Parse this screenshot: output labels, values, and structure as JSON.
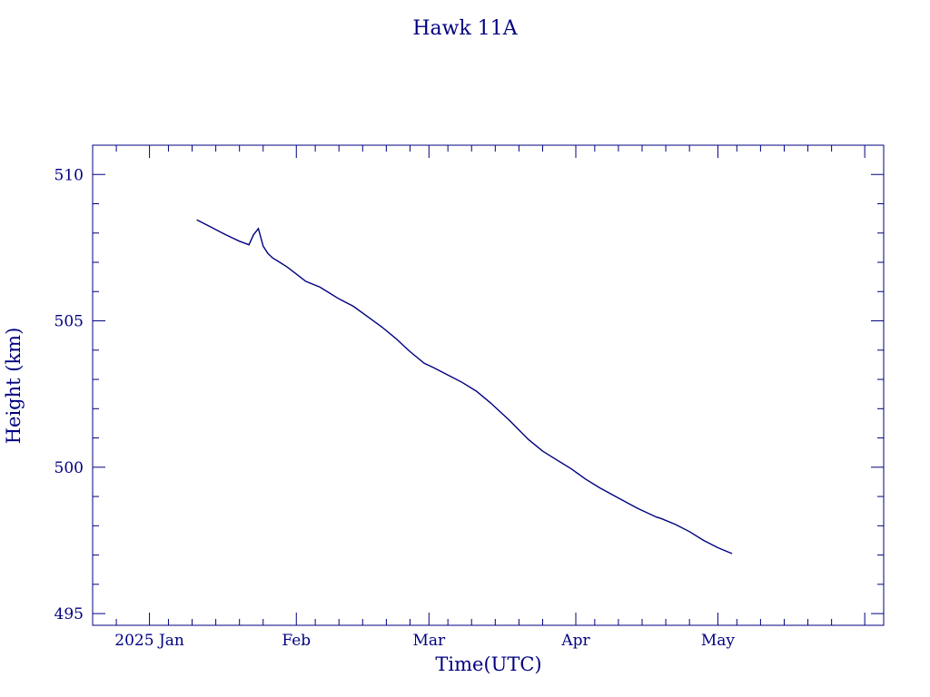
{
  "colors": {
    "ink": "#000080",
    "background": "#ffffff"
  },
  "chart_data": {
    "type": "line",
    "title": "Hawk 11A",
    "xlabel": "Time(UTC)",
    "ylabel": "Height (km)",
    "x_axis_kind": "date",
    "xlim": [
      "2024-12-20",
      "2025-06-05"
    ],
    "ylim": [
      494.6,
      511.0
    ],
    "x_ticks": [
      {
        "date": "2025-01-01",
        "label": "2025 Jan"
      },
      {
        "date": "2025-02-01",
        "label": "Feb"
      },
      {
        "date": "2025-03-01",
        "label": "Mar"
      },
      {
        "date": "2025-04-01",
        "label": "Apr"
      },
      {
        "date": "2025-05-01",
        "label": "May"
      }
    ],
    "y_ticks": [
      {
        "value": 495,
        "label": "495"
      },
      {
        "value": 500,
        "label": "500"
      },
      {
        "value": 505,
        "label": "505"
      },
      {
        "value": 510,
        "label": "510"
      }
    ],
    "y_minor_step": 1,
    "x_minor_days": [
      5,
      10,
      15,
      20,
      25
    ],
    "grid": false,
    "legend": "none",
    "series": [
      {
        "x": [
          "2025-01-11",
          "2025-01-14",
          "2025-01-17",
          "2025-01-20",
          "2025-01-22",
          "2025-01-23",
          "2025-01-24",
          "2025-01-25",
          "2025-01-26",
          "2025-01-27",
          "2025-01-28",
          "2025-01-30",
          "2025-02-01",
          "2025-02-03",
          "2025-02-06",
          "2025-02-08",
          "2025-02-10",
          "2025-02-13",
          "2025-02-16",
          "2025-02-19",
          "2025-02-22",
          "2025-02-25",
          "2025-02-28",
          "2025-03-02",
          "2025-03-05",
          "2025-03-08",
          "2025-03-11",
          "2025-03-14",
          "2025-03-18",
          "2025-03-22",
          "2025-03-25",
          "2025-03-28",
          "2025-03-31",
          "2025-04-03",
          "2025-04-06",
          "2025-04-10",
          "2025-04-14",
          "2025-04-18",
          "2025-04-19",
          "2025-04-22",
          "2025-04-25",
          "2025-04-28",
          "2025-05-01",
          "2025-05-04"
        ],
        "y": [
          508.45,
          508.2,
          507.95,
          507.72,
          507.6,
          507.95,
          508.15,
          507.55,
          507.3,
          507.15,
          507.05,
          506.85,
          506.6,
          506.35,
          506.15,
          505.95,
          505.75,
          505.5,
          505.15,
          504.8,
          504.4,
          503.95,
          503.55,
          503.4,
          503.15,
          502.9,
          502.6,
          502.2,
          501.6,
          500.95,
          500.55,
          500.25,
          499.95,
          499.6,
          499.3,
          498.95,
          498.6,
          498.3,
          498.25,
          498.05,
          497.8,
          497.5,
          497.25,
          497.05
        ]
      }
    ]
  }
}
